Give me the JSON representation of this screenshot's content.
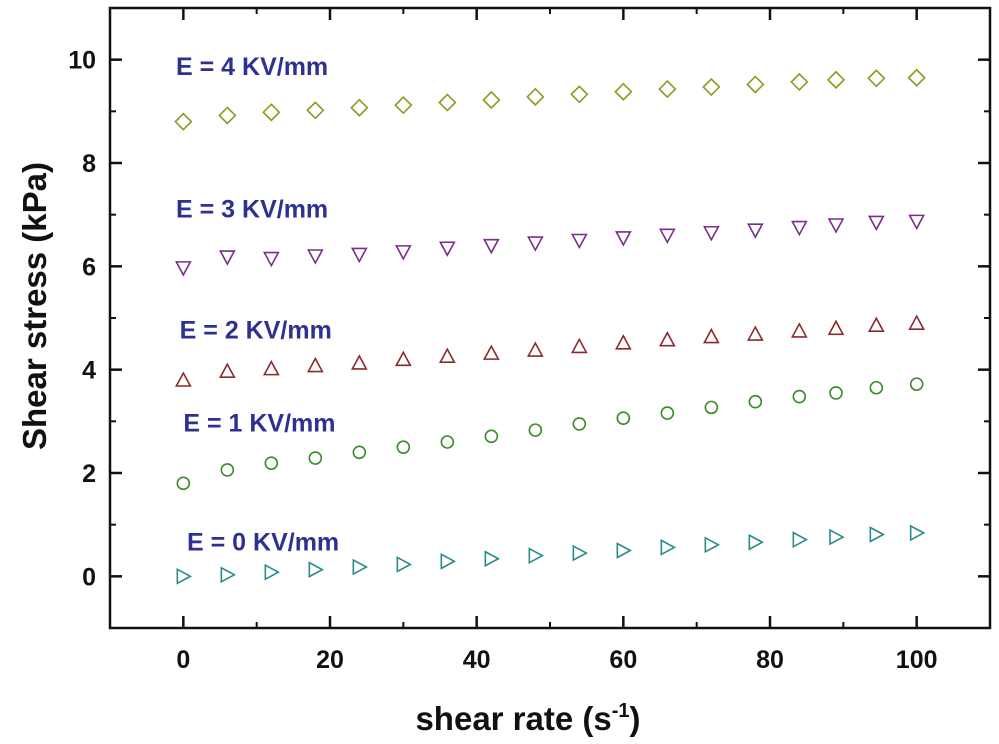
{
  "chart_data": {
    "type": "scatter",
    "title": "",
    "xlabel_main": "shear rate (s",
    "xlabel_sup": "-1",
    "xlabel_tail": ")",
    "ylabel": "Shear stress (kPa)",
    "xlim": [
      -10,
      110
    ],
    "ylim": [
      -1,
      11
    ],
    "xticks": [
      0,
      20,
      40,
      60,
      80,
      100
    ],
    "xtick_labels": [
      "0",
      "20",
      "40",
      "60",
      "80",
      "100"
    ],
    "yticks": [
      0,
      2,
      4,
      6,
      8,
      10
    ],
    "ytick_labels": [
      "0",
      "2",
      "4",
      "6",
      "8",
      "10"
    ],
    "label_color": "#2e3192",
    "x": [
      0,
      6,
      12,
      18,
      24,
      30,
      36,
      42,
      48,
      54,
      60,
      66,
      72,
      78,
      84,
      90,
      96,
      100
    ],
    "series": [
      {
        "name": "E = 4 KV/mm",
        "marker": "diamond",
        "color": "#8a9a1e",
        "label_pos": [
          -1,
          9.7
        ],
        "x": [
          0,
          6,
          12,
          18,
          24,
          30,
          36,
          42,
          48,
          54,
          60,
          66,
          72,
          78,
          84,
          89,
          94.5,
          100
        ],
        "values": [
          8.8,
          8.92,
          8.98,
          9.02,
          9.07,
          9.12,
          9.17,
          9.22,
          9.28,
          9.33,
          9.38,
          9.43,
          9.47,
          9.52,
          9.57,
          9.61,
          9.64,
          9.65
        ]
      },
      {
        "name": "E = 3 KV/mm",
        "marker": "triangle-down",
        "color": "#7b2d8b",
        "label_pos": [
          -1,
          6.95
        ],
        "x": [
          0,
          6,
          12,
          18,
          24,
          30,
          36,
          42,
          48,
          54,
          60,
          66,
          72,
          78,
          84,
          89,
          94.5,
          100
        ],
        "values": [
          5.97,
          6.18,
          6.15,
          6.2,
          6.23,
          6.28,
          6.35,
          6.4,
          6.45,
          6.5,
          6.55,
          6.6,
          6.65,
          6.7,
          6.75,
          6.8,
          6.85,
          6.87
        ]
      },
      {
        "name": "E = 2 KV/mm",
        "marker": "triangle-up",
        "color": "#8b2a2a",
        "label_pos": [
          -0.5,
          4.6
        ],
        "x": [
          0,
          6,
          12,
          18,
          24,
          30,
          36,
          42,
          48,
          54,
          60,
          66,
          72,
          78,
          84,
          89,
          94.5,
          100
        ],
        "values": [
          3.8,
          3.97,
          4.02,
          4.08,
          4.13,
          4.2,
          4.26,
          4.32,
          4.38,
          4.45,
          4.52,
          4.58,
          4.64,
          4.69,
          4.75,
          4.8,
          4.86,
          4.9
        ]
      },
      {
        "name": "E = 1 KV/mm",
        "marker": "circle",
        "color": "#3a8a2a",
        "label_pos": [
          0,
          2.8
        ],
        "x": [
          0,
          6,
          12,
          18,
          24,
          30,
          36,
          42,
          48,
          54,
          60,
          66,
          72,
          78,
          84,
          89,
          94.5,
          100
        ],
        "values": [
          1.8,
          2.06,
          2.19,
          2.29,
          2.4,
          2.5,
          2.6,
          2.71,
          2.83,
          2.95,
          3.06,
          3.16,
          3.27,
          3.38,
          3.48,
          3.55,
          3.65,
          3.72
        ]
      },
      {
        "name": "E = 0 KV/mm",
        "marker": "triangle-right",
        "color": "#2a8a8a",
        "label_pos": [
          0.5,
          0.5
        ],
        "x": [
          0,
          6,
          12,
          18,
          24,
          30,
          36,
          42,
          48,
          54,
          60,
          66,
          72,
          78,
          84,
          89,
          94.5,
          100
        ],
        "values": [
          0,
          0.03,
          0.08,
          0.13,
          0.18,
          0.23,
          0.29,
          0.34,
          0.4,
          0.45,
          0.5,
          0.56,
          0.61,
          0.66,
          0.71,
          0.76,
          0.81,
          0.84
        ]
      }
    ]
  }
}
